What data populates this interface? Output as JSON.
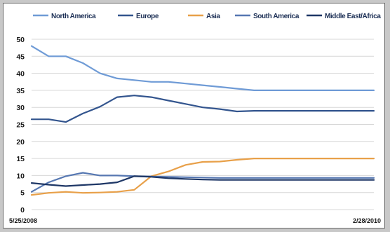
{
  "chart_data": {
    "type": "line",
    "title": "",
    "xlabel": "",
    "ylabel": "",
    "ylim": [
      0,
      50
    ],
    "yticks": [
      0,
      5,
      10,
      15,
      20,
      25,
      30,
      35,
      40,
      45,
      50
    ],
    "x_tick_labels": [
      "5/25/2008",
      "2/28/2010"
    ],
    "grid": true,
    "legend_position": "top",
    "x": [
      1,
      2,
      3,
      4,
      5,
      6,
      7,
      8,
      9,
      10,
      11,
      12,
      13,
      14,
      15,
      16,
      17,
      18,
      19,
      20,
      21
    ],
    "series": [
      {
        "name": "North America",
        "color": "#6f9bd6",
        "values": [
          48,
          45,
          45,
          43,
          40,
          38.5,
          38,
          37.5,
          37.5,
          37,
          36.5,
          36,
          35.5,
          35,
          35,
          35,
          35,
          35,
          35,
          35,
          35
        ]
      },
      {
        "name": "Europe",
        "color": "#33558e",
        "values": [
          26.5,
          26.5,
          25.7,
          28.2,
          30.2,
          33,
          33.5,
          33,
          32,
          31,
          30,
          29.5,
          28.8,
          29,
          29,
          29,
          29,
          29,
          29,
          29,
          29
        ]
      },
      {
        "name": "Asia",
        "color": "#e8a049",
        "values": [
          4.3,
          4.9,
          5.2,
          4.9,
          5.0,
          5.2,
          5.8,
          9.8,
          11.2,
          13.1,
          14.0,
          14.1,
          14.6,
          15.0,
          15.0,
          15.0,
          15.0,
          15.0,
          15.0,
          15.0,
          15.0
        ]
      },
      {
        "name": "South America",
        "color": "#5677b1",
        "values": [
          5.2,
          8.0,
          9.8,
          10.8,
          10.0,
          10.0,
          9.8,
          9.7,
          9.6,
          9.5,
          9.4,
          9.3,
          9.3,
          9.3,
          9.3,
          9.3,
          9.3,
          9.3,
          9.3,
          9.3,
          9.3
        ]
      },
      {
        "name": "Middle East/Africa",
        "color": "#1e3766",
        "values": [
          7.8,
          7.3,
          6.9,
          7.2,
          7.5,
          8.0,
          9.8,
          9.6,
          9.2,
          9.0,
          8.8,
          8.7,
          8.7,
          8.7,
          8.7,
          8.7,
          8.7,
          8.7,
          8.7,
          8.7,
          8.7
        ]
      }
    ]
  }
}
